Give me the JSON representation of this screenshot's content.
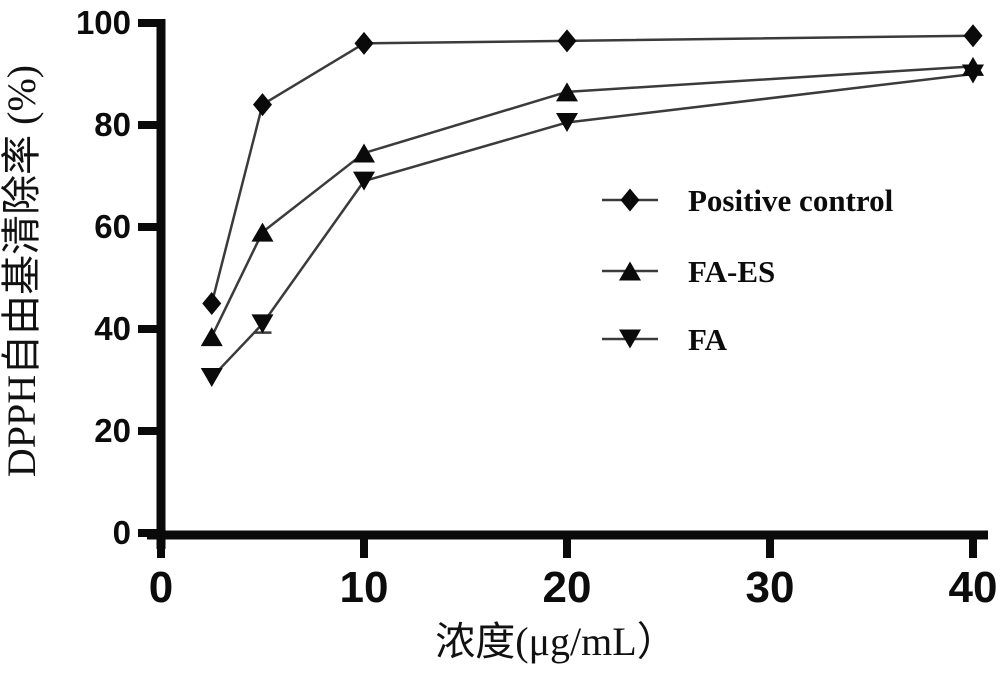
{
  "figure": {
    "background_color": "#ffffff",
    "axis_color": "#0a0a0a",
    "line_color": "#3b3b3b",
    "marker_color": "#0a0a0a",
    "text_color": "#0c0c0c"
  },
  "chart_data": {
    "type": "line",
    "title": "",
    "xlabel": "浓度(μg/mL）",
    "ylabel": "DPPH自由基清除率 (%)",
    "xlim": [
      0,
      40
    ],
    "ylim": [
      0,
      100
    ],
    "x_ticks": [
      0,
      10,
      20,
      30,
      40
    ],
    "y_ticks": [
      0,
      20,
      40,
      60,
      80,
      100
    ],
    "grid": false,
    "legend_position": "right-middle",
    "x": [
      2.5,
      5,
      10,
      20,
      40
    ],
    "series": [
      {
        "name": "Positive control",
        "marker": "diamond",
        "values": [
          45,
          84,
          96,
          96.5,
          97.5
        ]
      },
      {
        "name": "FA-ES",
        "marker": "triangle-up",
        "values": [
          38.5,
          59,
          74.5,
          86.5,
          91.5
        ]
      },
      {
        "name": "FA",
        "marker": "triangle-down",
        "values": [
          30.5,
          41,
          69,
          80.5,
          90
        ]
      }
    ],
    "error_caps": [
      {
        "series": "FA",
        "x": 5,
        "y": 39.3
      }
    ]
  }
}
